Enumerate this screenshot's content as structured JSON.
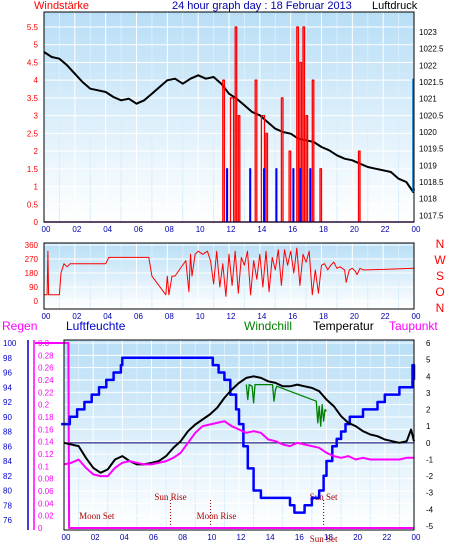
{
  "colors": {
    "wind": "#ff0000",
    "gust": "#0000ff",
    "pressure": "#000000",
    "direction": "#ff0000",
    "humidity": "#0000ff",
    "windchill": "#008000",
    "temperature": "#000000",
    "dewpoint": "#ff00ff",
    "rain": "#ff00ff",
    "event": "#aa0000",
    "plot_top": "#b8def6",
    "plot_bottom": "#ffffff"
  },
  "chart_data": [
    {
      "type": "line",
      "title": "24 hour graph day : 18 Februar 2013",
      "left_label": "Windstärke",
      "right_label": "Luftdruck",
      "x_ticks": [
        "00",
        "02",
        "04",
        "06",
        "08",
        "10",
        "12",
        "14",
        "16",
        "18",
        "20",
        "22",
        "00"
      ],
      "x_range": [
        0,
        24
      ],
      "left_ticks": [
        "0",
        "0.5",
        "1",
        "1.5",
        "2",
        "2.5",
        "3",
        "3.5",
        "4",
        "4.5",
        "5",
        "5.5"
      ],
      "left_range": [
        0,
        5.5
      ],
      "right_ticks": [
        "1017.5",
        "1018",
        "1018.5",
        "1019",
        "1019.5",
        "1020",
        "1020.5",
        "1021",
        "1021.5",
        "1022",
        "1022.5",
        "1023"
      ],
      "right_range": [
        1017.3,
        1023.6
      ],
      "series": [
        {
          "key": "pressure",
          "axis": "right",
          "x": [
            0,
            0.5,
            1,
            1.5,
            2,
            2.5,
            3,
            3.5,
            4,
            4.5,
            5,
            5.5,
            6,
            6.5,
            7,
            7.5,
            8,
            8.5,
            9,
            9.5,
            10,
            10.5,
            11,
            11.5,
            12,
            12.5,
            13,
            13.5,
            14,
            14.5,
            15,
            15.5,
            16,
            16.5,
            17,
            17.5,
            18,
            18.5,
            19,
            19.5,
            20,
            20.5,
            21,
            21.5,
            22,
            22.5,
            23,
            23.5,
            23.95,
            24
          ],
          "y": [
            1022.4,
            1022.25,
            1022.2,
            1022.0,
            1021.75,
            1021.5,
            1021.3,
            1021.25,
            1021.2,
            1021.05,
            1020.95,
            1021.0,
            1020.85,
            1020.95,
            1021.15,
            1021.35,
            1021.55,
            1021.6,
            1021.45,
            1021.6,
            1021.7,
            1021.6,
            1021.65,
            1021.45,
            1021.15,
            1021.0,
            1020.8,
            1020.6,
            1020.5,
            1020.3,
            1020.1,
            1020.0,
            1019.95,
            1019.8,
            1019.75,
            1019.7,
            1019.55,
            1019.45,
            1019.3,
            1019.2,
            1019.15,
            1019.05,
            1018.95,
            1018.9,
            1018.85,
            1018.8,
            1018.6,
            1018.5,
            1018.2,
            1018.3
          ]
        },
        {
          "key": "wind",
          "axis": "left",
          "x": [
            0,
            11.5,
            11.6,
            11.7,
            12.0,
            12.1,
            12.3,
            12.4,
            12.5,
            12.6,
            12.7,
            13.6,
            13.7,
            13.8,
            14.0,
            14.1,
            14.3,
            14.4,
            14.5,
            14.6,
            15.3,
            15.4,
            15.5,
            15.8,
            15.9,
            16.0,
            16.3,
            16.4,
            16.5,
            16.6,
            16.7,
            16.8,
            16.9,
            17.0,
            17.1,
            17.3,
            17.4,
            17.5,
            17.6,
            17.8,
            17.9,
            18.0,
            20.3,
            20.4,
            20.5,
            20.6,
            24
          ],
          "y": [
            0,
            0,
            4,
            0,
            0,
            3.5,
            0,
            5.5,
            0,
            3,
            0,
            0,
            4,
            0,
            0,
            3,
            0,
            2.5,
            0,
            0,
            0,
            3.5,
            0,
            0,
            2,
            0,
            0,
            5.5,
            0,
            4.5,
            0,
            5.5,
            0,
            3,
            0,
            0,
            4,
            0,
            0,
            0,
            1.5,
            0,
            0,
            2,
            0,
            0,
            0
          ]
        },
        {
          "key": "gust",
          "axis": "left",
          "x": [
            0,
            11.8,
            11.85,
            11.9,
            13.3,
            13.35,
            13.4,
            14.2,
            14.25,
            14.3,
            15.0,
            15.05,
            15.1,
            16.1,
            16.15,
            16.2,
            16.55,
            16.6,
            16.65,
            17.2,
            17.25,
            17.3,
            24
          ],
          "y": [
            0,
            0,
            1.5,
            0,
            0,
            1.5,
            0,
            0,
            1.5,
            0,
            0,
            1.5,
            0,
            0,
            1.5,
            0,
            0,
            1.5,
            0,
            0,
            1.5,
            0,
            0
          ]
        }
      ]
    },
    {
      "type": "line",
      "left_label": "",
      "right_label": "",
      "x_ticks": [
        "00",
        "02",
        "04",
        "06",
        "08",
        "10",
        "12",
        "14",
        "16",
        "18",
        "20",
        "22",
        "00"
      ],
      "x_range": [
        0,
        24
      ],
      "left_ticks": [
        "0",
        "90",
        "180",
        "270",
        "360"
      ],
      "left_range": [
        0,
        360
      ],
      "compass_labels": [
        "N",
        "W",
        "S",
        "O",
        "N"
      ],
      "series": [
        {
          "key": "direction",
          "axis": "left",
          "x": [
            0,
            0.2,
            0.25,
            0.3,
            0.8,
            1.0,
            1.1,
            1.3,
            1.5,
            1.7,
            4.0,
            4.2,
            6.8,
            7.0,
            7.9,
            8.0,
            8.1,
            8.3,
            8.5,
            9.2,
            9.4,
            9.5,
            9.6,
            9.8,
            10.0,
            10.3,
            10.6,
            10.8,
            11.0,
            11.2,
            11.4,
            11.6,
            11.8,
            12.0,
            12.2,
            12.4,
            12.6,
            12.8,
            13.0,
            13.2,
            13.4,
            13.6,
            13.8,
            14.0,
            14.2,
            14.4,
            14.6,
            14.8,
            15.0,
            15.2,
            15.4,
            15.6,
            15.8,
            16.0,
            16.2,
            16.4,
            16.6,
            16.8,
            17.0,
            17.2,
            17.4,
            17.6,
            17.8,
            18.0,
            18.2,
            18.4,
            18.6,
            18.8,
            19.0,
            19.2,
            19.5,
            19.6,
            19.8,
            20.0,
            20.2,
            20.3,
            20.5,
            20.7,
            21.0,
            24
          ],
          "y": [
            40,
            40,
            320,
            40,
            40,
            40,
            180,
            240,
            220,
            240,
            240,
            280,
            280,
            160,
            40,
            160,
            40,
            160,
            160,
            260,
            60,
            300,
            160,
            300,
            320,
            300,
            320,
            260,
            110,
            320,
            90,
            240,
            30,
            300,
            100,
            320,
            50,
            280,
            230,
            320,
            40,
            260,
            140,
            300,
            90,
            320,
            60,
            280,
            200,
            330,
            100,
            330,
            230,
            320,
            180,
            340,
            100,
            300,
            250,
            320,
            40,
            200,
            50,
            230,
            240,
            200,
            230,
            250,
            210,
            220,
            200,
            120,
            200,
            210,
            190,
            170,
            210,
            200,
            200,
            210
          ]
        }
      ]
    },
    {
      "type": "line",
      "rain_label": "Regen",
      "humidity_label": "Luftfeuchte",
      "windchill_label": "Windchill",
      "temperature_label": "Temperatur",
      "dewpoint_label": "Taupunkt",
      "x_ticks": [
        "00",
        "02",
        "04",
        "06",
        "08",
        "10",
        "12",
        "14",
        "16",
        "18",
        "20",
        "22",
        "00"
      ],
      "x_range": [
        0,
        24
      ],
      "rain_ticks": [
        "0",
        "0.02",
        "0.04",
        "0.06",
        "0.08",
        "0.1",
        "0.12",
        "0.14",
        "0.16",
        "0.18",
        "0.2",
        "0.22",
        "0.24",
        "0.26",
        "0.28",
        "0.3"
      ],
      "rain_range": [
        0,
        0.3
      ],
      "humidity_ticks": [
        "76",
        "78",
        "80",
        "82",
        "84",
        "86",
        "88",
        "90",
        "92",
        "94",
        "96",
        "98",
        "100"
      ],
      "humidity_range": [
        76,
        100
      ],
      "temp_ticks": [
        "-5",
        "-4",
        "-3",
        "-2",
        "-1",
        "0",
        "1",
        "2",
        "3",
        "4",
        "5",
        "6"
      ],
      "temp_range": [
        -5,
        6
      ],
      "events": [
        {
          "label": "Moon Set",
          "time": 0.35
        },
        {
          "label": "Sun Rise",
          "time": 7.3
        },
        {
          "label": "Moon Rise",
          "time": 10.05
        },
        {
          "label": "Sun Set",
          "time": 17.8
        },
        {
          "label": "Sun Set",
          "time": 17.8
        }
      ],
      "series": [
        {
          "key": "rain",
          "axis": "rain",
          "x": [
            -0.2,
            0,
            0.3,
            0.35,
            24
          ],
          "y": [
            0.3,
            0.3,
            0.3,
            0,
            0
          ]
        },
        {
          "key": "humidity",
          "axis": "humidity",
          "x": [
            -0.2,
            0,
            0.4,
            0.9,
            1.4,
            1.9,
            2.4,
            2.9,
            3.4,
            3.9,
            4.0,
            5.0,
            6.0,
            7.0,
            8.0,
            9.0,
            9.8,
            10.2,
            10.6,
            11.0,
            11.4,
            11.8,
            12.0,
            12.3,
            12.6,
            13.0,
            13.5,
            14.0,
            14.5,
            15.0,
            15.5,
            15.8,
            16.0,
            16.5,
            17.0,
            17.5,
            17.8,
            18.0,
            18.4,
            18.7,
            19.0,
            19.3,
            19.6,
            20.0,
            20.5,
            21.0,
            21.5,
            22.0,
            22.5,
            23.0,
            23.5,
            23.9,
            24
          ],
          "y": [
            89,
            89,
            90,
            91,
            92,
            93,
            94,
            95,
            96,
            97,
            98,
            98,
            98,
            98,
            98,
            98,
            98,
            97,
            96,
            95,
            93,
            91,
            89,
            86,
            83,
            80,
            79,
            79,
            79,
            79,
            78,
            77,
            77,
            78,
            79,
            80,
            82,
            84,
            86,
            87,
            88,
            89,
            90,
            90,
            91,
            91,
            92,
            93,
            93,
            94,
            94,
            97,
            95
          ]
        },
        {
          "key": "windchill",
          "axis": "temp",
          "x": [
            12.5,
            12.6,
            12.7,
            12.9,
            13.0,
            13.1,
            14.3,
            14.4,
            14.5,
            14.6,
            17.3,
            17.4,
            17.5,
            17.6,
            17.7,
            17.8,
            17.9,
            18.0
          ],
          "y": [
            3.5,
            2.6,
            3.5,
            3.4,
            2.4,
            3.5,
            3.5,
            2.5,
            3.2,
            3.4,
            2.5,
            1.2,
            2.2,
            1.0,
            2.3,
            1.3,
            2.0,
            1.9
          ]
        },
        {
          "key": "temperature",
          "axis": "temp",
          "x": [
            0,
            0.5,
            1,
            1.5,
            2,
            2.5,
            3,
            3.5,
            4,
            4.5,
            5,
            5.5,
            6,
            6.5,
            7,
            7.5,
            8,
            8.5,
            9,
            9.5,
            10,
            10.5,
            11,
            11.5,
            12,
            12.5,
            13,
            13.5,
            14,
            14.5,
            15,
            15.5,
            16,
            16.5,
            17,
            17.5,
            18,
            18.5,
            19,
            19.5,
            20,
            20.5,
            21,
            21.5,
            22,
            22.5,
            23,
            23.5,
            23.8,
            24
          ],
          "y": [
            0,
            -0.1,
            -0.2,
            -0.9,
            -1.5,
            -1.8,
            -1.6,
            -1.0,
            -0.8,
            -1.1,
            -1.3,
            -1.3,
            -1.2,
            -1.1,
            -0.8,
            -0.3,
            0.1,
            0.7,
            1.1,
            1.4,
            1.7,
            2.1,
            2.7,
            3.2,
            3.6,
            3.9,
            4.0,
            3.9,
            3.7,
            3.6,
            3.4,
            3.4,
            3.5,
            3.4,
            3.3,
            3.1,
            2.6,
            2.2,
            1.6,
            1.2,
            1.0,
            0.7,
            0.5,
            0.4,
            0.2,
            0.1,
            0.0,
            0.1,
            0.8,
            0.1
          ]
        },
        {
          "key": "dewpoint",
          "axis": "temp",
          "x": [
            0,
            0.5,
            1,
            1.5,
            2,
            2.5,
            3,
            3.5,
            4,
            4.5,
            5,
            5.5,
            6,
            6.5,
            7,
            7.5,
            8,
            8.5,
            9,
            9.5,
            10,
            10.5,
            11,
            11.5,
            12,
            12.5,
            13,
            13.5,
            14,
            14.5,
            15,
            15.5,
            16,
            16.5,
            17,
            17.5,
            18,
            18.5,
            19,
            19.5,
            20,
            20.5,
            21,
            21.5,
            22,
            22.5,
            23,
            23.5,
            24
          ],
          "y": [
            -1.3,
            -1.2,
            -1.0,
            -1.5,
            -1.9,
            -2.0,
            -2.0,
            -1.5,
            -1.2,
            -1.1,
            -1.2,
            -1.3,
            -1.3,
            -1.2,
            -1.1,
            -0.9,
            -0.6,
            0,
            0.6,
            1.0,
            1.1,
            1.2,
            1.3,
            1.0,
            0.8,
            0.6,
            0.7,
            0.6,
            0.2,
            0.1,
            -0.1,
            -0.2,
            0,
            -0.1,
            -0.2,
            -0.3,
            -0.6,
            -0.8,
            -0.9,
            -0.8,
            -1.0,
            -0.9,
            -1.0,
            -1.0,
            -1.0,
            -1.0,
            -1.0,
            -0.9,
            -0.9
          ]
        }
      ]
    }
  ]
}
